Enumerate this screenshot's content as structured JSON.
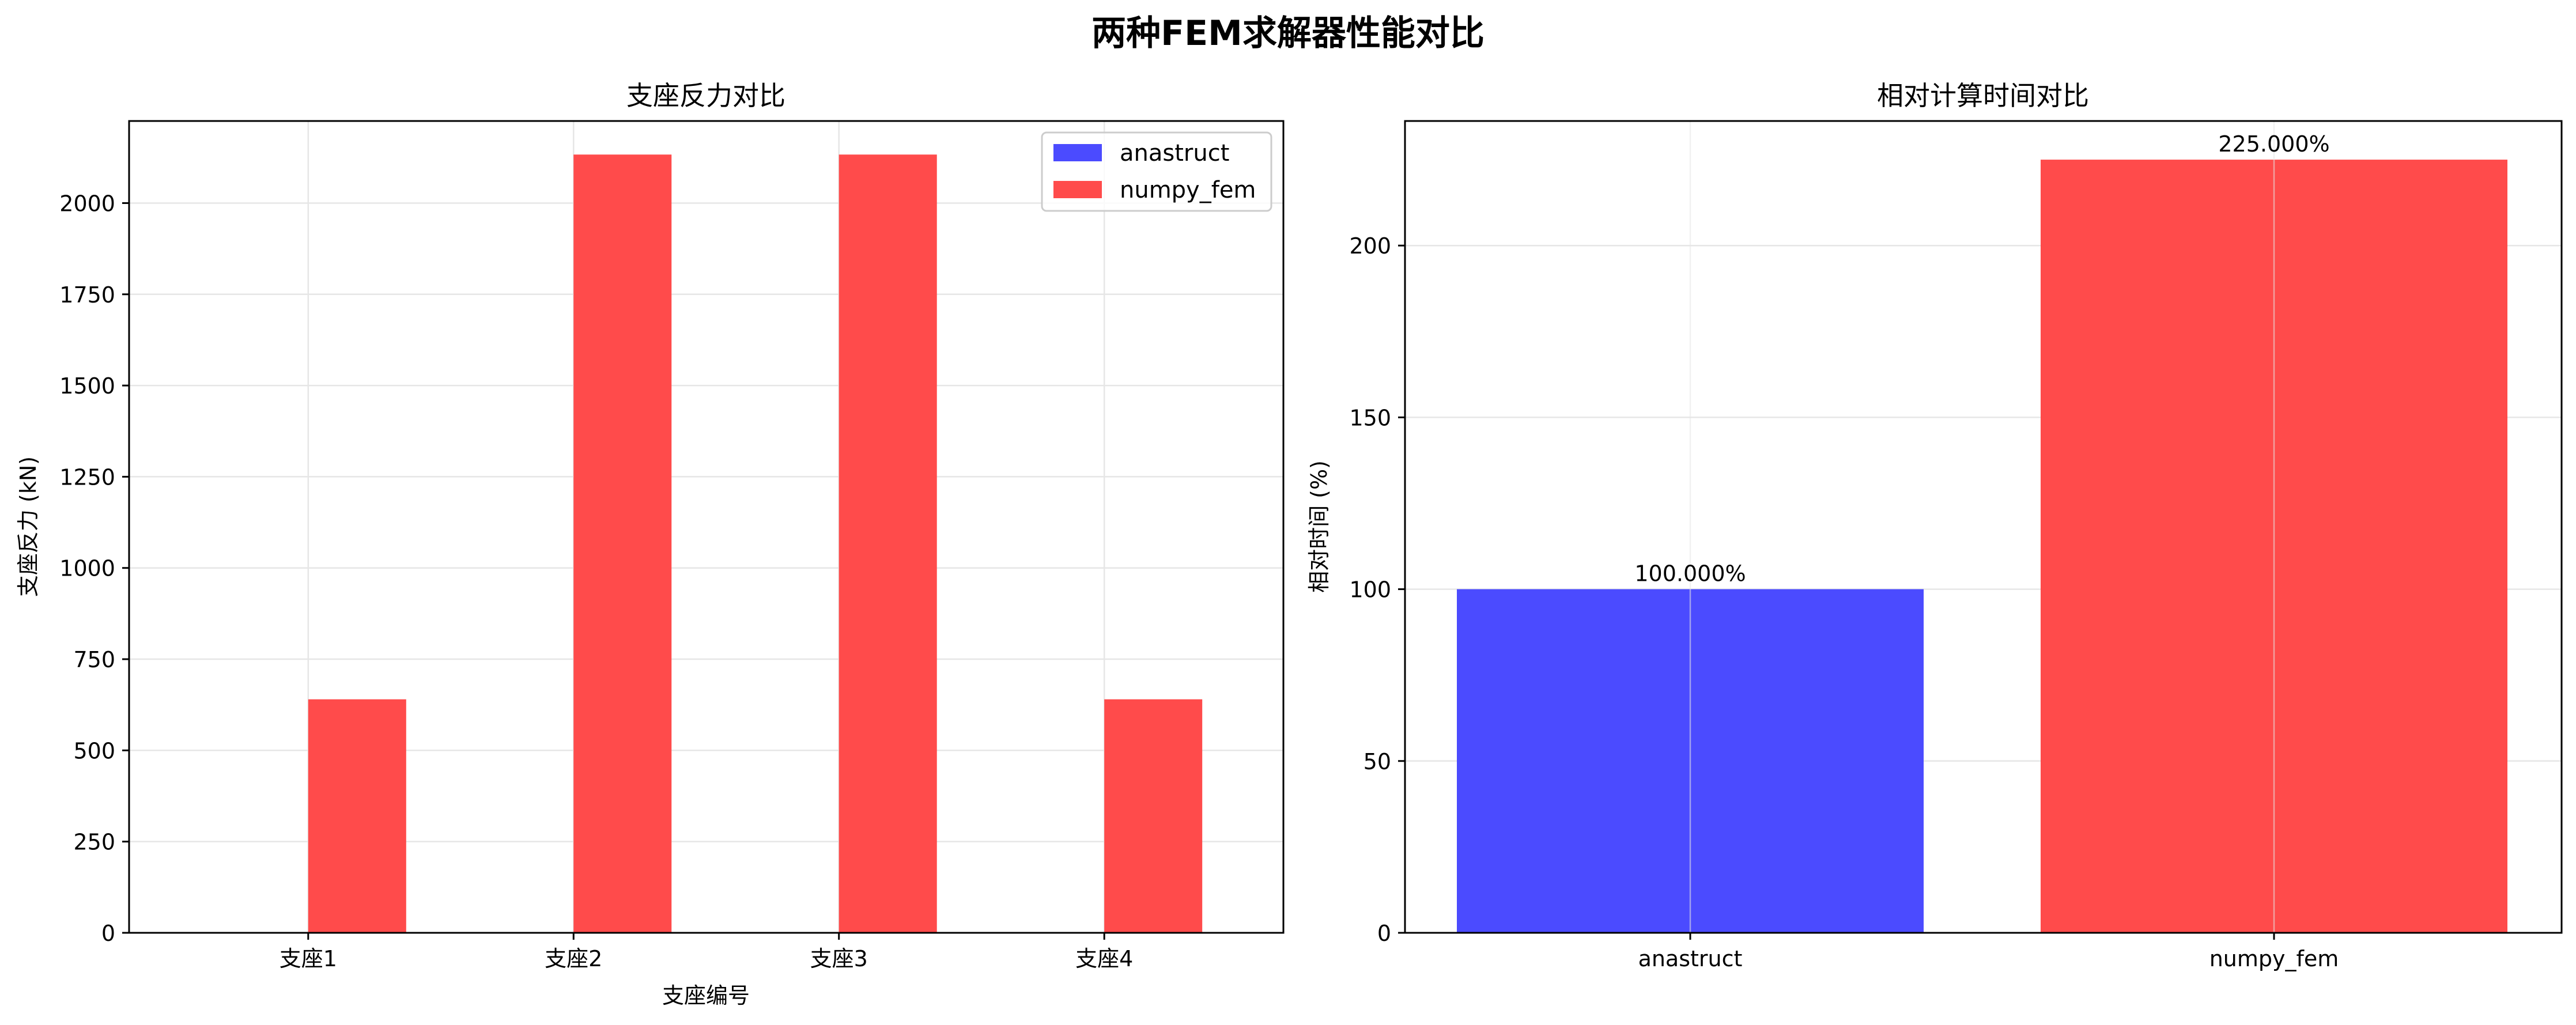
{
  "figure": {
    "suptitle": "两种FEM求解器性能对比"
  },
  "chart_data": [
    {
      "type": "bar",
      "title": "支座反力对比",
      "xlabel": "支座编号",
      "ylabel": "支座反力 (kN)",
      "categories": [
        "支座1",
        "支座2",
        "支座3",
        "支座4"
      ],
      "series": [
        {
          "name": "anastruct",
          "values": [
            0,
            0,
            0,
            0
          ],
          "color": "#4b4bff"
        },
        {
          "name": "numpy_fem",
          "values": [
            640,
            2133,
            2133,
            640
          ],
          "color": "#ff4b4b"
        }
      ],
      "ylim": [
        0,
        2225
      ],
      "yticks": [
        0,
        250,
        500,
        750,
        1000,
        1250,
        1500,
        1750,
        2000
      ],
      "grid": true,
      "legend": "top-right"
    },
    {
      "type": "bar",
      "title": "相对计算时间对比",
      "xlabel": "",
      "ylabel": "相对时间 (%)",
      "categories": [
        "anastruct",
        "numpy_fem"
      ],
      "values": [
        100.0,
        225.0
      ],
      "data_labels": [
        "100.000%",
        "225.000%"
      ],
      "colors": [
        "#4b4bff",
        "#ff4b4b"
      ],
      "ylim": [
        0,
        236.25
      ],
      "yticks": [
        0,
        50,
        100,
        150,
        200
      ],
      "grid": true
    }
  ]
}
